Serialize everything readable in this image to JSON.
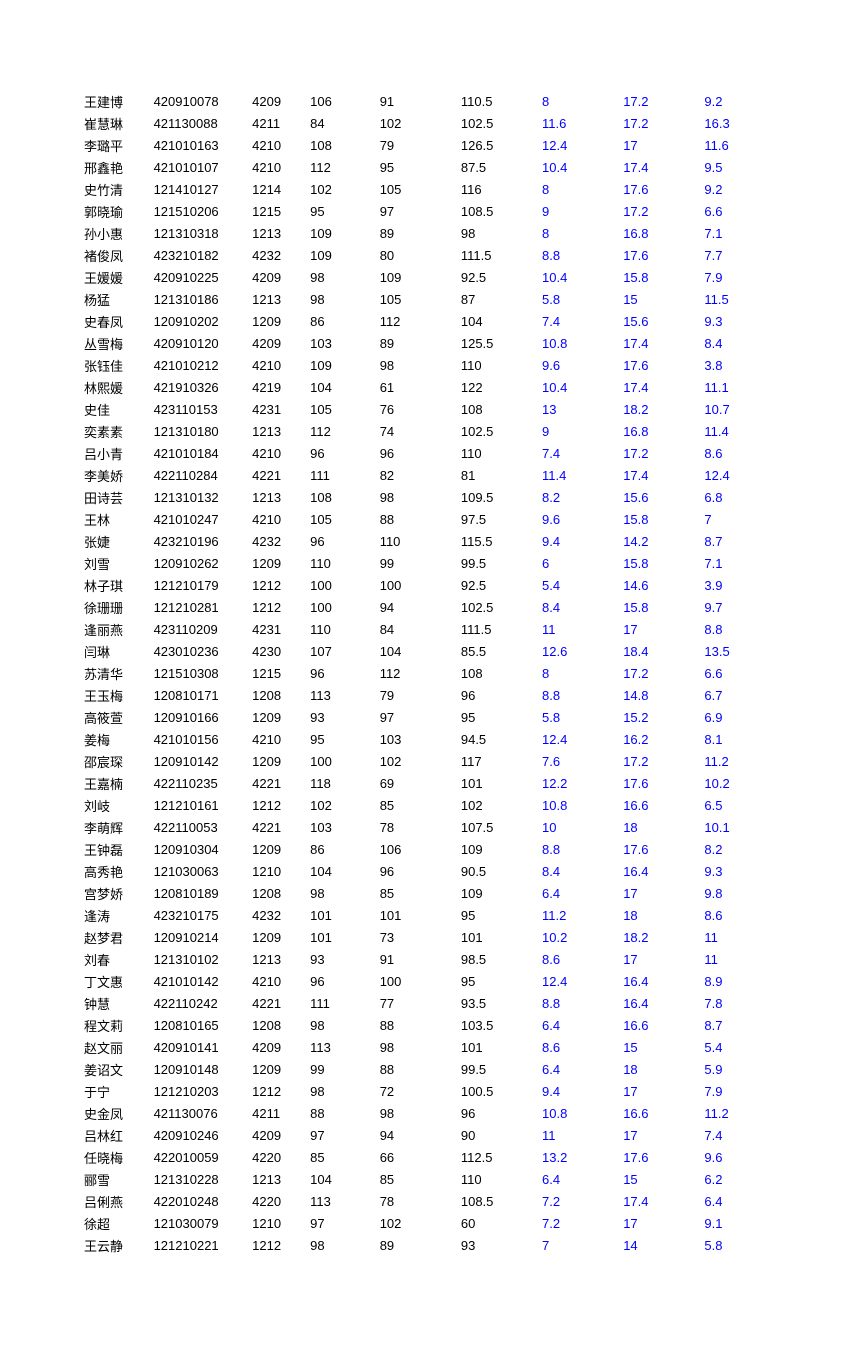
{
  "rows": [
    {
      "name": "王建博",
      "id": "420910078",
      "code": "4209",
      "v1": "106",
      "v2": "91",
      "v3": "110.5",
      "v4": "8",
      "v5": "17.2",
      "v6": "9.2"
    },
    {
      "name": "崔慧琳",
      "id": "421130088",
      "code": "4211",
      "v1": "84",
      "v2": "102",
      "v3": "102.5",
      "v4": "11.6",
      "v5": "17.2",
      "v6": "16.3"
    },
    {
      "name": "李璐平",
      "id": "421010163",
      "code": "4210",
      "v1": "108",
      "v2": "79",
      "v3": "126.5",
      "v4": "12.4",
      "v5": "17",
      "v6": "11.6"
    },
    {
      "name": "邢鑫艳",
      "id": "421010107",
      "code": "4210",
      "v1": "112",
      "v2": "95",
      "v3": "87.5",
      "v4": "10.4",
      "v5": "17.4",
      "v6": "9.5"
    },
    {
      "name": "史竹清",
      "id": "121410127",
      "code": "1214",
      "v1": "102",
      "v2": "105",
      "v3": "116",
      "v4": "8",
      "v5": "17.6",
      "v6": "9.2"
    },
    {
      "name": "郭晓瑜",
      "id": "121510206",
      "code": "1215",
      "v1": "95",
      "v2": "97",
      "v3": "108.5",
      "v4": "9",
      "v5": "17.2",
      "v6": "6.6"
    },
    {
      "name": "孙小惠",
      "id": "121310318",
      "code": "1213",
      "v1": "109",
      "v2": "89",
      "v3": "98",
      "v4": "8",
      "v5": "16.8",
      "v6": "7.1"
    },
    {
      "name": "褚俊凤",
      "id": "423210182",
      "code": "4232",
      "v1": "109",
      "v2": "80",
      "v3": "111.5",
      "v4": "8.8",
      "v5": "17.6",
      "v6": "7.7"
    },
    {
      "name": "王媛媛",
      "id": "420910225",
      "code": "4209",
      "v1": "98",
      "v2": "109",
      "v3": "92.5",
      "v4": "10.4",
      "v5": "15.8",
      "v6": "7.9"
    },
    {
      "name": "杨猛",
      "id": "121310186",
      "code": "1213",
      "v1": "98",
      "v2": "105",
      "v3": "87",
      "v4": "5.8",
      "v5": "15",
      "v6": "11.5"
    },
    {
      "name": "史春凤",
      "id": "120910202",
      "code": "1209",
      "v1": "86",
      "v2": "112",
      "v3": "104",
      "v4": "7.4",
      "v5": "15.6",
      "v6": "9.3"
    },
    {
      "name": "丛雪梅",
      "id": "420910120",
      "code": "4209",
      "v1": "103",
      "v2": "89",
      "v3": "125.5",
      "v4": "10.8",
      "v5": "17.4",
      "v6": "8.4"
    },
    {
      "name": "张钰佳",
      "id": "421010212",
      "code": "4210",
      "v1": "109",
      "v2": "98",
      "v3": "110",
      "v4": "9.6",
      "v5": "17.6",
      "v6": "3.8"
    },
    {
      "name": "林熙媛",
      "id": "421910326",
      "code": "4219",
      "v1": "104",
      "v2": "61",
      "v3": "122",
      "v4": "10.4",
      "v5": "17.4",
      "v6": "11.1"
    },
    {
      "name": "史佳",
      "id": "423110153",
      "code": "4231",
      "v1": "105",
      "v2": "76",
      "v3": "108",
      "v4": "13",
      "v5": "18.2",
      "v6": "10.7"
    },
    {
      "name": "奕素素",
      "id": "121310180",
      "code": "1213",
      "v1": "112",
      "v2": "74",
      "v3": "102.5",
      "v4": "9",
      "v5": "16.8",
      "v6": "11.4"
    },
    {
      "name": "吕小青",
      "id": "421010184",
      "code": "4210",
      "v1": "96",
      "v2": "96",
      "v3": "110",
      "v4": "7.4",
      "v5": "17.2",
      "v6": "8.6"
    },
    {
      "name": "李美娇",
      "id": "422110284",
      "code": "4221",
      "v1": "111",
      "v2": "82",
      "v3": "81",
      "v4": "11.4",
      "v5": "17.4",
      "v6": "12.4"
    },
    {
      "name": "田诗芸",
      "id": "121310132",
      "code": "1213",
      "v1": "108",
      "v2": "98",
      "v3": "109.5",
      "v4": "8.2",
      "v5": "15.6",
      "v6": "6.8"
    },
    {
      "name": "王林",
      "id": "421010247",
      "code": "4210",
      "v1": "105",
      "v2": "88",
      "v3": "97.5",
      "v4": "9.6",
      "v5": "15.8",
      "v6": "7"
    },
    {
      "name": "张婕",
      "id": "423210196",
      "code": "4232",
      "v1": "96",
      "v2": "110",
      "v3": "115.5",
      "v4": "9.4",
      "v5": "14.2",
      "v6": "8.7"
    },
    {
      "name": "刘雪",
      "id": "120910262",
      "code": "1209",
      "v1": "110",
      "v2": "99",
      "v3": "99.5",
      "v4": "6",
      "v5": "15.8",
      "v6": "7.1"
    },
    {
      "name": "林子琪",
      "id": "121210179",
      "code": "1212",
      "v1": "100",
      "v2": "100",
      "v3": "92.5",
      "v4": "5.4",
      "v5": "14.6",
      "v6": "3.9"
    },
    {
      "name": "徐珊珊",
      "id": "121210281",
      "code": "1212",
      "v1": "100",
      "v2": "94",
      "v3": "102.5",
      "v4": "8.4",
      "v5": "15.8",
      "v6": "9.7"
    },
    {
      "name": "逢丽燕",
      "id": "423110209",
      "code": "4231",
      "v1": "110",
      "v2": "84",
      "v3": "111.5",
      "v4": "11",
      "v5": "17",
      "v6": "8.8"
    },
    {
      "name": "闫琳",
      "id": "423010236",
      "code": "4230",
      "v1": "107",
      "v2": "104",
      "v3": "85.5",
      "v4": "12.6",
      "v5": "18.4",
      "v6": "13.5"
    },
    {
      "name": "苏清华",
      "id": "121510308",
      "code": "1215",
      "v1": "96",
      "v2": "112",
      "v3": "108",
      "v4": "8",
      "v5": "17.2",
      "v6": "6.6"
    },
    {
      "name": "王玉梅",
      "id": "120810171",
      "code": "1208",
      "v1": "113",
      "v2": "79",
      "v3": "96",
      "v4": "8.8",
      "v5": "14.8",
      "v6": "6.7"
    },
    {
      "name": "高筱萱",
      "id": "120910166",
      "code": "1209",
      "v1": "93",
      "v2": "97",
      "v3": "95",
      "v4": "5.8",
      "v5": "15.2",
      "v6": "6.9"
    },
    {
      "name": "姜梅",
      "id": "421010156",
      "code": "4210",
      "v1": "95",
      "v2": "103",
      "v3": "94.5",
      "v4": "12.4",
      "v5": "16.2",
      "v6": "8.1"
    },
    {
      "name": "邵宸琛",
      "id": "120910142",
      "code": "1209",
      "v1": "100",
      "v2": "102",
      "v3": "117",
      "v4": "7.6",
      "v5": "17.2",
      "v6": "11.2"
    },
    {
      "name": "王嘉楠",
      "id": "422110235",
      "code": "4221",
      "v1": "118",
      "v2": "69",
      "v3": "101",
      "v4": "12.2",
      "v5": "17.6",
      "v6": "10.2"
    },
    {
      "name": "刘岐",
      "id": "121210161",
      "code": "1212",
      "v1": "102",
      "v2": "85",
      "v3": "102",
      "v4": "10.8",
      "v5": "16.6",
      "v6": "6.5"
    },
    {
      "name": "李萌辉",
      "id": "422110053",
      "code": "4221",
      "v1": "103",
      "v2": "78",
      "v3": "107.5",
      "v4": "10",
      "v5": "18",
      "v6": "10.1"
    },
    {
      "name": "王钟磊",
      "id": "120910304",
      "code": "1209",
      "v1": "86",
      "v2": "106",
      "v3": "109",
      "v4": "8.8",
      "v5": "17.6",
      "v6": "8.2"
    },
    {
      "name": "高秀艳",
      "id": "121030063",
      "code": "1210",
      "v1": "104",
      "v2": "96",
      "v3": "90.5",
      "v4": "8.4",
      "v5": "16.4",
      "v6": "9.3"
    },
    {
      "name": "宫梦娇",
      "id": "120810189",
      "code": "1208",
      "v1": "98",
      "v2": "85",
      "v3": "109",
      "v4": "6.4",
      "v5": "17",
      "v6": "9.8"
    },
    {
      "name": "逢涛",
      "id": "423210175",
      "code": "4232",
      "v1": "101",
      "v2": "101",
      "v3": "95",
      "v4": "11.2",
      "v5": "18",
      "v6": "8.6"
    },
    {
      "name": "赵梦君",
      "id": "120910214",
      "code": "1209",
      "v1": "101",
      "v2": "73",
      "v3": "101",
      "v4": "10.2",
      "v5": "18.2",
      "v6": "11"
    },
    {
      "name": "刘春",
      "id": "121310102",
      "code": "1213",
      "v1": "93",
      "v2": "91",
      "v3": "98.5",
      "v4": "8.6",
      "v5": "17",
      "v6": "11"
    },
    {
      "name": "丁文惠",
      "id": "421010142",
      "code": "4210",
      "v1": "96",
      "v2": "100",
      "v3": "95",
      "v4": "12.4",
      "v5": "16.4",
      "v6": "8.9"
    },
    {
      "name": "钟慧",
      "id": "422110242",
      "code": "4221",
      "v1": "111",
      "v2": "77",
      "v3": "93.5",
      "v4": "8.8",
      "v5": "16.4",
      "v6": "7.8"
    },
    {
      "name": "程文莉",
      "id": "120810165",
      "code": "1208",
      "v1": "98",
      "v2": "88",
      "v3": "103.5",
      "v4": "6.4",
      "v5": "16.6",
      "v6": "8.7"
    },
    {
      "name": "赵文丽",
      "id": "420910141",
      "code": "4209",
      "v1": "113",
      "v2": "98",
      "v3": "101",
      "v4": "8.6",
      "v5": "15",
      "v6": "5.4"
    },
    {
      "name": "姜诏文",
      "id": "120910148",
      "code": "1209",
      "v1": "99",
      "v2": "88",
      "v3": "99.5",
      "v4": "6.4",
      "v5": "18",
      "v6": "5.9"
    },
    {
      "name": "于宁",
      "id": "121210203",
      "code": "1212",
      "v1": "98",
      "v2": "72",
      "v3": "100.5",
      "v4": "9.4",
      "v5": "17",
      "v6": "7.9"
    },
    {
      "name": "史金凤",
      "id": "421130076",
      "code": "4211",
      "v1": "88",
      "v2": "98",
      "v3": "96",
      "v4": "10.8",
      "v5": "16.6",
      "v6": "11.2"
    },
    {
      "name": "吕林红",
      "id": "420910246",
      "code": "4209",
      "v1": "97",
      "v2": "94",
      "v3": "90",
      "v4": "11",
      "v5": "17",
      "v6": "7.4"
    },
    {
      "name": "任晓梅",
      "id": "422010059",
      "code": "4220",
      "v1": "85",
      "v2": "66",
      "v3": "112.5",
      "v4": "13.2",
      "v5": "17.6",
      "v6": "9.6"
    },
    {
      "name": "郦雪",
      "id": "121310228",
      "code": "1213",
      "v1": "104",
      "v2": "85",
      "v3": "110",
      "v4": "6.4",
      "v5": "15",
      "v6": "6.2"
    },
    {
      "name": "吕俐燕",
      "id": "422010248",
      "code": "4220",
      "v1": "113",
      "v2": "78",
      "v3": "108.5",
      "v4": "7.2",
      "v5": "17.4",
      "v6": "6.4"
    },
    {
      "name": "徐超",
      "id": "121030079",
      "code": "1210",
      "v1": "97",
      "v2": "102",
      "v3": "60",
      "v4": "7.2",
      "v5": "17",
      "v6": "9.1"
    },
    {
      "name": "王云静",
      "id": "121210221",
      "code": "1212",
      "v1": "98",
      "v2": "89",
      "v3": "93",
      "v4": "7",
      "v5": "14",
      "v6": "5.8"
    }
  ]
}
